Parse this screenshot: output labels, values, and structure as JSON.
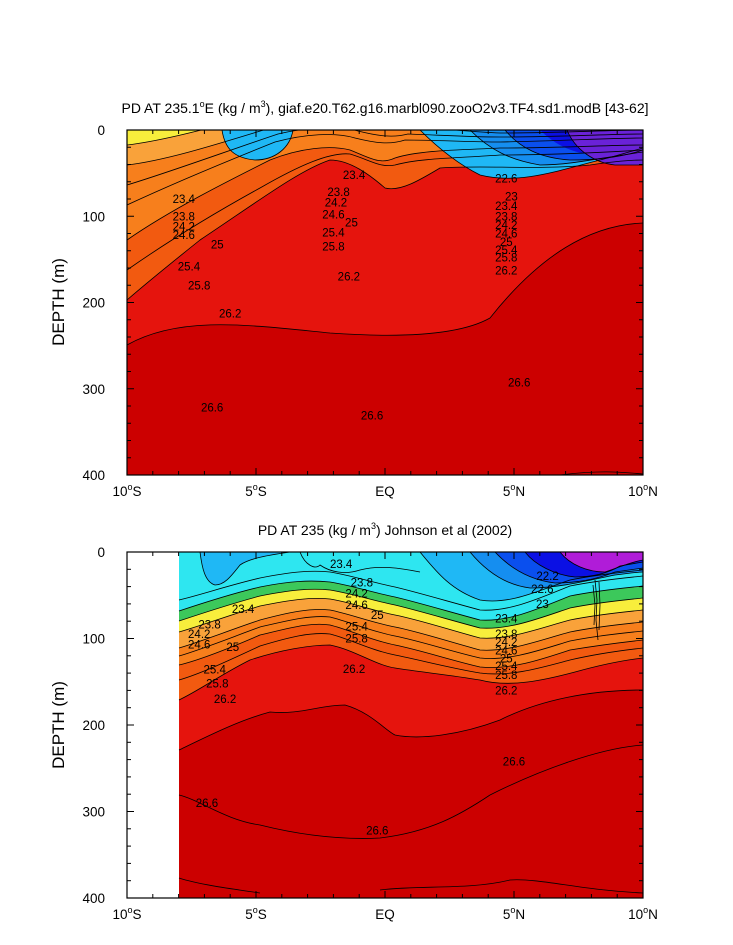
{
  "chart_data": [
    {
      "type": "contour",
      "title": "PD AT 235.1°E (kg / m³), giaf.e20.T62.g16.marbl090.zooO2v3.TF4.sd1.modB [43-62]",
      "title_parts": {
        "a": "PD AT 235.1",
        "deg": "o",
        "b": "E (kg / m",
        "sup": "3",
        "c": "), giaf.e20.T62.g16.marbl090.zooO2v3.TF4.sd1.modB [43-62]"
      },
      "xlabel": "",
      "ylabel": "DEPTH (m)",
      "xlim": [
        -10,
        10
      ],
      "ylim": [
        400,
        0
      ],
      "x_ticks": [
        {
          "value": -10,
          "label": "10",
          "deg": "o",
          "suffix": "S"
        },
        {
          "value": -5,
          "label": "5",
          "deg": "o",
          "suffix": "S"
        },
        {
          "value": 0,
          "label": "EQ",
          "deg": "",
          "suffix": ""
        },
        {
          "value": 5,
          "label": "5",
          "deg": "o",
          "suffix": "N"
        },
        {
          "value": 10,
          "label": "10",
          "deg": "o",
          "suffix": "N"
        }
      ],
      "y_ticks": [
        "0",
        "100",
        "200",
        "300",
        "400"
      ],
      "contour_labels": [
        {
          "text": "23.4",
          "x": -7.8,
          "depth": 80
        },
        {
          "text": "23.8",
          "x": -7.8,
          "depth": 100
        },
        {
          "text": "24.2",
          "x": -7.8,
          "depth": 112
        },
        {
          "text": "24.6",
          "x": -7.8,
          "depth": 122
        },
        {
          "text": "25",
          "x": -6.5,
          "depth": 133
        },
        {
          "text": "25.4",
          "x": -7.6,
          "depth": 158
        },
        {
          "text": "25.8",
          "x": -7.2,
          "depth": 180
        },
        {
          "text": "26.2",
          "x": -6.0,
          "depth": 213
        },
        {
          "text": "26.6",
          "x": -6.7,
          "depth": 322
        },
        {
          "text": "23.4",
          "x": -1.2,
          "depth": 52
        },
        {
          "text": "23.8",
          "x": -1.8,
          "depth": 72
        },
        {
          "text": "24.2",
          "x": -1.9,
          "depth": 84
        },
        {
          "text": "24.6",
          "x": -2.0,
          "depth": 98
        },
        {
          "text": "25",
          "x": -1.3,
          "depth": 107
        },
        {
          "text": "25.4",
          "x": -2.0,
          "depth": 119
        },
        {
          "text": "25.8",
          "x": -2.0,
          "depth": 135
        },
        {
          "text": "26.2",
          "x": -1.4,
          "depth": 170
        },
        {
          "text": "26.6",
          "x": -0.5,
          "depth": 331
        },
        {
          "text": "22.6",
          "x": 4.7,
          "depth": 56
        },
        {
          "text": "23",
          "x": 4.9,
          "depth": 77
        },
        {
          "text": "23.4",
          "x": 4.7,
          "depth": 88
        },
        {
          "text": "23.8",
          "x": 4.7,
          "depth": 100
        },
        {
          "text": "24.2",
          "x": 4.7,
          "depth": 110
        },
        {
          "text": "24.6",
          "x": 4.7,
          "depth": 120
        },
        {
          "text": "25",
          "x": 4.7,
          "depth": 130
        },
        {
          "text": "25.4",
          "x": 4.7,
          "depth": 139
        },
        {
          "text": "25.8",
          "x": 4.7,
          "depth": 148
        },
        {
          "text": "26.2",
          "x": 4.7,
          "depth": 163
        },
        {
          "text": "26.6",
          "x": 5.2,
          "depth": 293
        }
      ],
      "contour_levels": [
        22.6,
        23.0,
        23.4,
        23.8,
        24.2,
        24.6,
        25.0,
        25.4,
        25.8,
        26.2,
        26.6
      ]
    },
    {
      "type": "contour",
      "title": "PD AT 235 (kg / m³) Johnson et al (2002)",
      "title_parts": {
        "a": "PD AT 235 (kg / m",
        "sup": "3",
        "c": ") Johnson et al (2002)"
      },
      "xlabel": "",
      "ylabel": "DEPTH (m)",
      "xlim": [
        -10,
        10
      ],
      "ylim": [
        400,
        0
      ],
      "data_x_range": [
        -8,
        10
      ],
      "x_ticks": [
        {
          "value": -10,
          "label": "10",
          "deg": "o",
          "suffix": "S"
        },
        {
          "value": -5,
          "label": "5",
          "deg": "o",
          "suffix": "S"
        },
        {
          "value": 0,
          "label": "EQ",
          "deg": "",
          "suffix": ""
        },
        {
          "value": 5,
          "label": "5",
          "deg": "o",
          "suffix": "N"
        },
        {
          "value": 10,
          "label": "10",
          "deg": "o",
          "suffix": "N"
        }
      ],
      "y_ticks": [
        "0",
        "100",
        "200",
        "300",
        "400"
      ],
      "contour_labels": [
        {
          "text": "23.4",
          "x": -5.5,
          "depth": 66
        },
        {
          "text": "23.8",
          "x": -6.8,
          "depth": 84
        },
        {
          "text": "24.2",
          "x": -7.2,
          "depth": 95
        },
        {
          "text": "24.6",
          "x": -7.2,
          "depth": 107
        },
        {
          "text": "25",
          "x": -5.9,
          "depth": 110
        },
        {
          "text": "25.4",
          "x": -6.6,
          "depth": 136
        },
        {
          "text": "25.8",
          "x": -6.5,
          "depth": 152
        },
        {
          "text": "26.2",
          "x": -6.2,
          "depth": 170
        },
        {
          "text": "26.6",
          "x": -6.9,
          "depth": 290
        },
        {
          "text": "23.4",
          "x": -1.7,
          "depth": 14
        },
        {
          "text": "23.8",
          "x": -0.9,
          "depth": 35
        },
        {
          "text": "24.2",
          "x": -1.1,
          "depth": 48
        },
        {
          "text": "24.6",
          "x": -1.1,
          "depth": 61
        },
        {
          "text": "25",
          "x": -0.3,
          "depth": 73
        },
        {
          "text": "25.4",
          "x": -1.1,
          "depth": 86
        },
        {
          "text": "25.8",
          "x": -1.1,
          "depth": 100
        },
        {
          "text": "26.2",
          "x": -1.2,
          "depth": 135
        },
        {
          "text": "26.6",
          "x": -0.3,
          "depth": 322
        },
        {
          "text": "22.6",
          "x": 6.1,
          "depth": 43
        },
        {
          "text": "23",
          "x": 6.1,
          "depth": 60
        },
        {
          "text": "23.4",
          "x": 4.7,
          "depth": 77
        },
        {
          "text": "23.8",
          "x": 4.7,
          "depth": 95
        },
        {
          "text": "24.2",
          "x": 4.7,
          "depth": 104
        },
        {
          "text": "24.6",
          "x": 4.7,
          "depth": 114
        },
        {
          "text": "25",
          "x": 4.7,
          "depth": 123
        },
        {
          "text": "25.4",
          "x": 4.7,
          "depth": 132
        },
        {
          "text": "25.8",
          "x": 4.7,
          "depth": 142
        },
        {
          "text": "26.2",
          "x": 4.7,
          "depth": 160
        },
        {
          "text": "26.6",
          "x": 5.0,
          "depth": 242
        },
        {
          "text": "22.2",
          "x": 6.3,
          "depth": 28
        }
      ],
      "contour_levels": [
        22.2,
        22.6,
        23.0,
        23.4,
        23.8,
        24.2,
        24.6,
        25.0,
        25.4,
        25.8,
        26.2,
        26.6
      ]
    }
  ],
  "colors": {
    "deep_red": "#cc0000",
    "red": "#e5140d",
    "orange_red": "#f25a10",
    "orange": "#f77f1c",
    "light_orange": "#f9a23a",
    "yellow_orange": "#fbc33b",
    "yellow": "#f8ee3c",
    "yellow_green": "#b7e34a",
    "green": "#3cc85b",
    "teal_green": "#1ec99a",
    "cyan": "#2ee6f0",
    "light_blue": "#2fd3f8",
    "sky_blue": "#1fb8f5",
    "blue": "#158ef0",
    "royal_blue": "#0a4fee",
    "dark_blue": "#0b10e4",
    "purple": "#6a22d8",
    "magenta": "#b01cd8"
  }
}
